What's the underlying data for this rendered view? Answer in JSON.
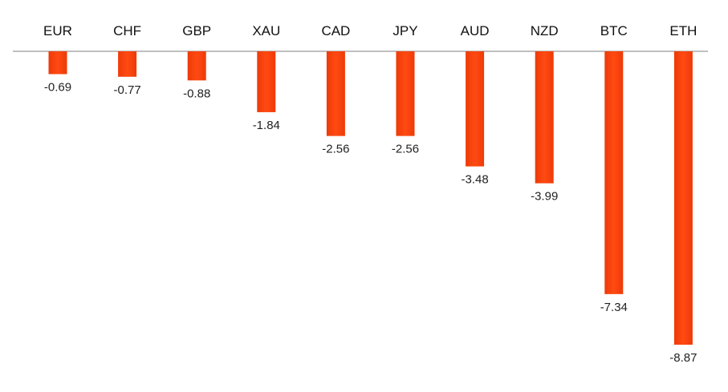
{
  "chart_data": {
    "type": "bar",
    "categories": [
      "EUR",
      "CHF",
      "GBP",
      "XAU",
      "CAD",
      "JPY",
      "AUD",
      "NZD",
      "BTC",
      "ETH"
    ],
    "values": [
      -0.69,
      -0.77,
      -0.88,
      -1.84,
      -2.56,
      -2.56,
      -3.48,
      -3.99,
      -7.34,
      -8.87
    ],
    "value_labels": [
      "-0.69",
      "-0.77",
      "-0.88",
      "-1.84",
      "-2.56",
      "-2.56",
      "-3.48",
      "-3.99",
      "-7.34",
      "-8.87"
    ],
    "title": "",
    "xlabel": "",
    "ylabel": "",
    "ylim": [
      -8.87,
      0
    ],
    "category_axis_position": "top",
    "grid": false,
    "legend": "none",
    "bar_color": "#ff4a12",
    "bar_color_dark": "#ee3a08",
    "axis_color": "#bfbfbf"
  }
}
